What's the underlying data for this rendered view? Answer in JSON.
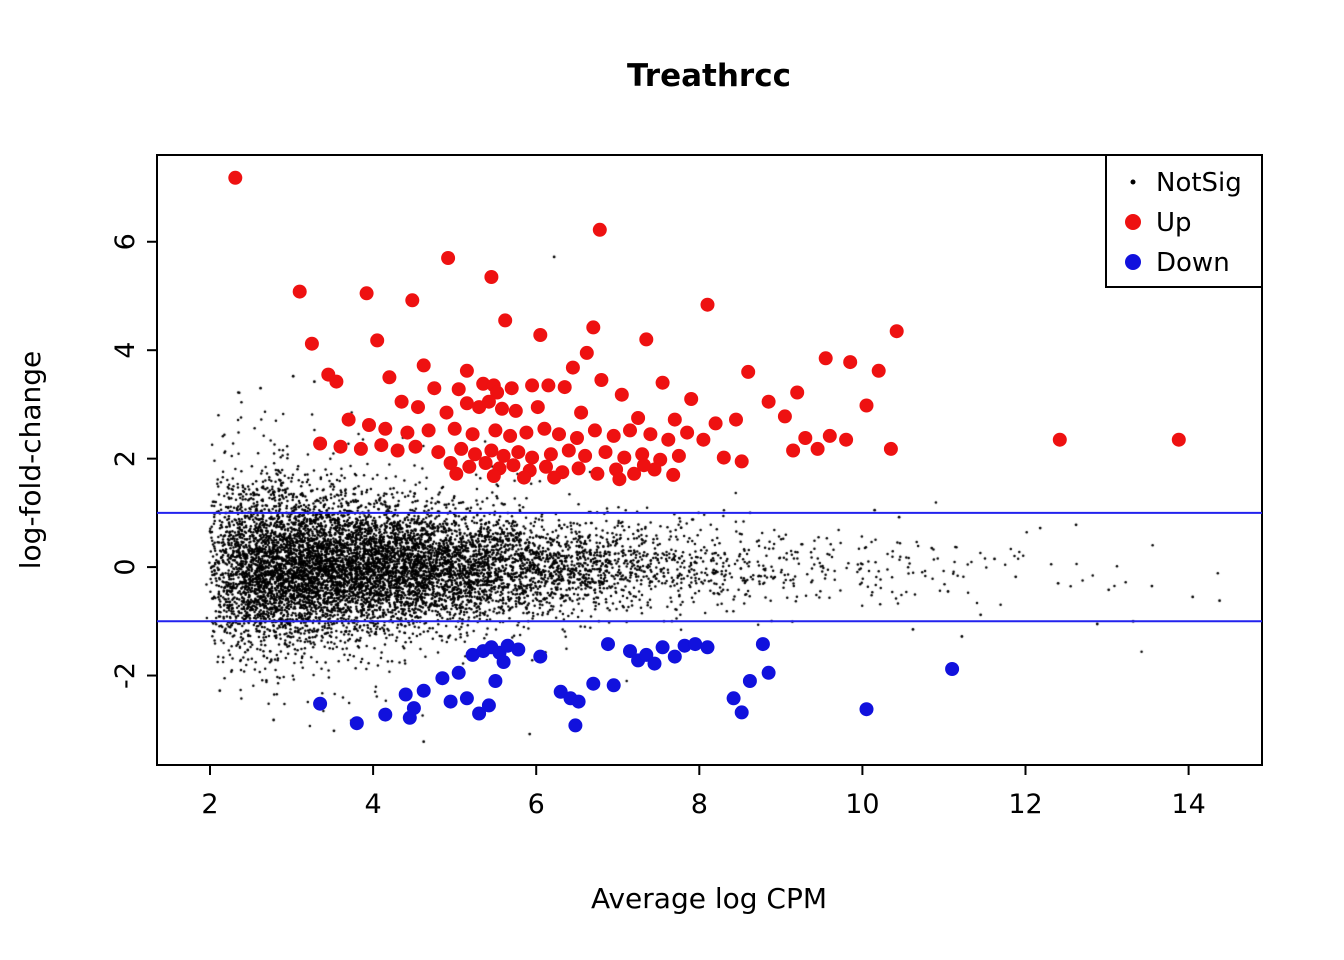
{
  "page": {
    "background": "#ffffff"
  },
  "chart_data": {
    "type": "scatter",
    "title": "Treathrcc",
    "xlabel": "Average log CPM",
    "ylabel": "log-fold-change",
    "xlim": [
      1.35,
      14.9
    ],
    "ylim": [
      -3.65,
      7.6
    ],
    "xticks": [
      2,
      4,
      6,
      8,
      10,
      12,
      14
    ],
    "yticks": [
      -2,
      0,
      2,
      4,
      6
    ],
    "grid": false,
    "colors": {
      "notsig": "#000000",
      "up": "#ee1111",
      "down": "#1111dd",
      "threshold_line": "#2222ee",
      "axis": "#000000"
    },
    "hlines": [
      {
        "y": 1,
        "color": "#2222ee"
      },
      {
        "y": -1,
        "color": "#2222ee"
      }
    ],
    "legend": {
      "position": "top-right",
      "entries": [
        {
          "label": "NotSig",
          "color": "#000000",
          "marker_radius": 2.5
        },
        {
          "label": "Up",
          "color": "#ee1111",
          "marker_radius": 8
        },
        {
          "label": "Down",
          "color": "#1111dd",
          "marker_radius": 8
        }
      ]
    },
    "series": [
      {
        "name": "NotSig",
        "color": "#000000",
        "marker_radius": 1.25,
        "generated_cloud": {
          "seed": 42,
          "count": 9000,
          "x_offset": 1.95,
          "x_gamma_scale": 1.18,
          "x_min": 1.9,
          "x_max": 14.6,
          "y_sigma_base": 0.3,
          "y_sigma_amp": 0.55,
          "y_sigma_decay": 3.5,
          "outlier_prob": 0.07,
          "outlier_mult": 1.9,
          "y_abs_max": 3.35
        },
        "extra_points": [
          [
            6.22,
            5.72
          ],
          [
            3.02,
            3.52
          ],
          [
            3.28,
            3.42
          ],
          [
            2.62,
            3.3
          ],
          [
            2.12,
            -2.28
          ],
          [
            2.78,
            -2.82
          ],
          [
            3.52,
            -3.02
          ],
          [
            4.62,
            -3.22
          ],
          [
            5.92,
            -3.08
          ],
          [
            6.5,
            -2.9
          ],
          [
            10.62,
            -1.15
          ],
          [
            10.85,
            0.35
          ],
          [
            11.05,
            -0.45
          ],
          [
            11.22,
            -1.28
          ],
          [
            11.45,
            -0.88
          ],
          [
            11.62,
            0.15
          ],
          [
            11.88,
            -0.18
          ],
          [
            12.18,
            0.72
          ],
          [
            12.4,
            -0.3
          ],
          [
            12.62,
            0.78
          ],
          [
            12.88,
            -1.05
          ],
          [
            13.02,
            -0.42
          ],
          [
            13.32,
            -1.0
          ],
          [
            13.55,
            -0.35
          ],
          [
            14.05,
            -0.55
          ],
          [
            14.38,
            -0.62
          ],
          [
            10.45,
            0.92
          ],
          [
            10.15,
            1.05
          ]
        ]
      },
      {
        "name": "Up",
        "color": "#ee1111",
        "marker_radius": 7,
        "points": [
          [
            2.31,
            7.18
          ],
          [
            6.78,
            6.22
          ],
          [
            4.92,
            5.7
          ],
          [
            5.45,
            5.35
          ],
          [
            3.1,
            5.08
          ],
          [
            3.92,
            5.05
          ],
          [
            4.48,
            4.92
          ],
          [
            5.62,
            4.55
          ],
          [
            8.1,
            4.84
          ],
          [
            10.42,
            4.35
          ],
          [
            6.7,
            4.42
          ],
          [
            4.05,
            4.18
          ],
          [
            3.25,
            4.12
          ],
          [
            6.62,
            3.95
          ],
          [
            6.05,
            4.28
          ],
          [
            7.35,
            4.2
          ],
          [
            9.55,
            3.85
          ],
          [
            9.85,
            3.78
          ],
          [
            8.6,
            3.6
          ],
          [
            10.2,
            3.62
          ],
          [
            3.45,
            3.55
          ],
          [
            3.55,
            3.42
          ],
          [
            4.2,
            3.5
          ],
          [
            4.75,
            3.3
          ],
          [
            5.05,
            3.28
          ],
          [
            5.35,
            3.38
          ],
          [
            5.48,
            3.35
          ],
          [
            5.52,
            3.22
          ],
          [
            5.7,
            3.3
          ],
          [
            5.95,
            3.35
          ],
          [
            6.15,
            3.35
          ],
          [
            6.35,
            3.32
          ],
          [
            6.8,
            3.45
          ],
          [
            7.05,
            3.18
          ],
          [
            7.55,
            3.4
          ],
          [
            7.9,
            3.1
          ],
          [
            8.85,
            3.05
          ],
          [
            9.2,
            3.22
          ],
          [
            10.05,
            2.98
          ],
          [
            4.35,
            3.05
          ],
          [
            4.55,
            2.95
          ],
          [
            4.9,
            2.85
          ],
          [
            5.15,
            3.02
          ],
          [
            5.3,
            2.95
          ],
          [
            5.42,
            3.05
          ],
          [
            5.58,
            2.92
          ],
          [
            5.75,
            2.88
          ],
          [
            6.02,
            2.95
          ],
          [
            6.55,
            2.85
          ],
          [
            7.25,
            2.75
          ],
          [
            7.7,
            2.72
          ],
          [
            8.2,
            2.65
          ],
          [
            8.45,
            2.72
          ],
          [
            9.05,
            2.78
          ],
          [
            3.7,
            2.72
          ],
          [
            3.95,
            2.62
          ],
          [
            4.15,
            2.55
          ],
          [
            4.42,
            2.48
          ],
          [
            4.68,
            2.52
          ],
          [
            5.0,
            2.55
          ],
          [
            5.22,
            2.45
          ],
          [
            5.5,
            2.52
          ],
          [
            5.68,
            2.42
          ],
          [
            5.88,
            2.48
          ],
          [
            6.1,
            2.55
          ],
          [
            6.28,
            2.45
          ],
          [
            6.5,
            2.38
          ],
          [
            6.72,
            2.52
          ],
          [
            6.95,
            2.42
          ],
          [
            7.15,
            2.52
          ],
          [
            7.4,
            2.45
          ],
          [
            7.62,
            2.35
          ],
          [
            7.85,
            2.48
          ],
          [
            8.05,
            2.35
          ],
          [
            9.3,
            2.38
          ],
          [
            9.6,
            2.42
          ],
          [
            9.8,
            2.35
          ],
          [
            12.42,
            2.35
          ],
          [
            13.88,
            2.35
          ],
          [
            3.35,
            2.28
          ],
          [
            3.6,
            2.22
          ],
          [
            3.85,
            2.18
          ],
          [
            4.1,
            2.25
          ],
          [
            4.3,
            2.15
          ],
          [
            4.52,
            2.22
          ],
          [
            4.8,
            2.12
          ],
          [
            5.08,
            2.18
          ],
          [
            5.25,
            2.08
          ],
          [
            5.45,
            2.15
          ],
          [
            5.6,
            2.05
          ],
          [
            5.78,
            2.12
          ],
          [
            5.95,
            2.02
          ],
          [
            6.18,
            2.08
          ],
          [
            6.4,
            2.15
          ],
          [
            6.6,
            2.05
          ],
          [
            6.85,
            2.12
          ],
          [
            7.08,
            2.02
          ],
          [
            7.3,
            2.08
          ],
          [
            7.52,
            1.98
          ],
          [
            7.75,
            2.05
          ],
          [
            8.3,
            2.02
          ],
          [
            9.15,
            2.15
          ],
          [
            9.45,
            2.18
          ],
          [
            10.35,
            2.18
          ],
          [
            4.95,
            1.92
          ],
          [
            5.18,
            1.85
          ],
          [
            5.38,
            1.92
          ],
          [
            5.55,
            1.82
          ],
          [
            5.72,
            1.88
          ],
          [
            5.92,
            1.78
          ],
          [
            6.12,
            1.85
          ],
          [
            6.32,
            1.75
          ],
          [
            6.52,
            1.82
          ],
          [
            6.75,
            1.72
          ],
          [
            6.98,
            1.8
          ],
          [
            7.2,
            1.72
          ],
          [
            7.45,
            1.8
          ],
          [
            7.68,
            1.7
          ],
          [
            5.02,
            1.72
          ],
          [
            5.48,
            1.68
          ],
          [
            5.85,
            1.65
          ],
          [
            6.22,
            1.65
          ],
          [
            7.02,
            1.62
          ],
          [
            7.32,
            1.88
          ],
          [
            8.52,
            1.95
          ],
          [
            6.45,
            3.68
          ],
          [
            5.15,
            3.62
          ],
          [
            4.62,
            3.72
          ]
        ]
      },
      {
        "name": "Down",
        "color": "#1111dd",
        "marker_radius": 7,
        "points": [
          [
            3.35,
            -2.52
          ],
          [
            3.8,
            -2.88
          ],
          [
            4.15,
            -2.72
          ],
          [
            4.45,
            -2.78
          ],
          [
            4.5,
            -2.6
          ],
          [
            4.4,
            -2.35
          ],
          [
            4.62,
            -2.28
          ],
          [
            4.85,
            -2.05
          ],
          [
            5.05,
            -1.95
          ],
          [
            5.15,
            -2.42
          ],
          [
            5.3,
            -2.7
          ],
          [
            5.42,
            -2.55
          ],
          [
            5.5,
            -2.1
          ],
          [
            5.22,
            -1.62
          ],
          [
            5.35,
            -1.55
          ],
          [
            5.45,
            -1.48
          ],
          [
            5.55,
            -1.58
          ],
          [
            5.65,
            -1.45
          ],
          [
            5.78,
            -1.52
          ],
          [
            5.6,
            -1.75
          ],
          [
            6.05,
            -1.65
          ],
          [
            6.3,
            -2.3
          ],
          [
            6.42,
            -2.42
          ],
          [
            6.48,
            -2.92
          ],
          [
            6.52,
            -2.48
          ],
          [
            6.7,
            -2.15
          ],
          [
            6.95,
            -2.18
          ],
          [
            7.15,
            -1.55
          ],
          [
            7.25,
            -1.72
          ],
          [
            7.35,
            -1.62
          ],
          [
            7.45,
            -1.78
          ],
          [
            7.55,
            -1.48
          ],
          [
            7.7,
            -1.65
          ],
          [
            7.82,
            -1.45
          ],
          [
            7.95,
            -1.42
          ],
          [
            8.1,
            -1.48
          ],
          [
            8.42,
            -2.42
          ],
          [
            8.52,
            -2.68
          ],
          [
            8.62,
            -2.1
          ],
          [
            8.78,
            -1.42
          ],
          [
            8.85,
            -1.95
          ],
          [
            10.05,
            -2.62
          ],
          [
            11.1,
            -1.88
          ],
          [
            6.88,
            -1.42
          ],
          [
            4.95,
            -2.48
          ]
        ]
      }
    ]
  }
}
